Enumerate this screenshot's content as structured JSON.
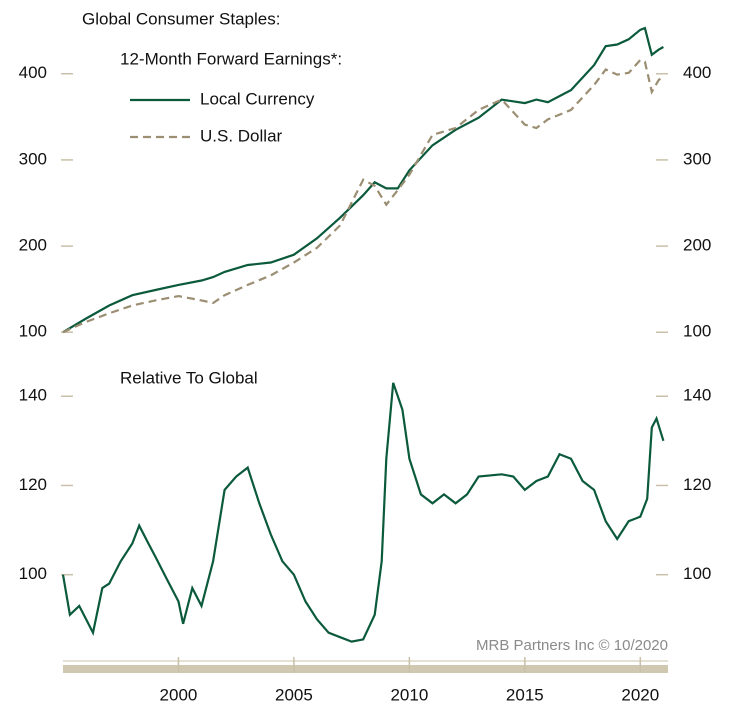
{
  "chart_data": [
    {
      "type": "line",
      "title": "Global Consumer Staples:",
      "subtitle": "12-Month Forward Earnings*:",
      "xlim": [
        1995,
        2021.2
      ],
      "ylim": [
        91,
        474
      ],
      "yticks": [
        100,
        200,
        300,
        400
      ],
      "x": [
        1995,
        1996,
        1997,
        1998,
        1999,
        2000,
        2001,
        2001.5,
        2002,
        2003,
        2004,
        2005,
        2006,
        2007,
        2008,
        2008.5,
        2009,
        2009.5,
        2010,
        2011,
        2012,
        2013,
        2014,
        2015,
        2015.5,
        2016,
        2017,
        2018,
        2018.5,
        2019,
        2019.5,
        2020,
        2020.2,
        2020.5,
        2020.8,
        2021
      ],
      "series": [
        {
          "name": "Local Currency",
          "color": "#0b5a3c",
          "dash": false,
          "values": [
            100,
            116,
            131,
            143,
            149,
            155,
            160,
            164,
            170,
            178,
            181,
            190,
            209,
            233,
            259,
            274,
            267,
            267,
            288,
            317,
            335,
            349,
            370,
            366,
            370,
            367,
            381,
            410,
            432,
            434,
            440,
            451,
            453,
            422,
            428,
            431
          ]
        },
        {
          "name": "U.S. Dollar",
          "color": "#9b8e72",
          "dash": true,
          "values": [
            100,
            112,
            122,
            131,
            137,
            142,
            137,
            134,
            143,
            155,
            166,
            181,
            198,
            224,
            277,
            270,
            248,
            265,
            283,
            329,
            337,
            358,
            370,
            341,
            337,
            347,
            358,
            387,
            405,
            399,
            401,
            416,
            414,
            379,
            393,
            396
          ]
        }
      ]
    },
    {
      "type": "line",
      "title": "Relative To Global",
      "annotation": "MRB Partners Inc © 10/2020",
      "xlim": [
        1995,
        2021.2
      ],
      "xticks": [
        2000,
        2005,
        2010,
        2015,
        2020
      ],
      "ylim": [
        82,
        147
      ],
      "yticks": [
        100,
        120,
        140
      ],
      "x": [
        1995,
        1995.3,
        1995.7,
        1996,
        1996.3,
        1996.7,
        1997,
        1997.5,
        1998,
        1998.3,
        1998.7,
        1999,
        1999.5,
        2000,
        2000.2,
        2000.6,
        2001,
        2001.5,
        2002,
        2002.5,
        2003,
        2003.5,
        2004,
        2004.5,
        2005,
        2005.5,
        2006,
        2006.5,
        2007,
        2007.5,
        2008,
        2008.5,
        2008.8,
        2009,
        2009.3,
        2009.7,
        2010,
        2010.5,
        2011,
        2011.5,
        2012,
        2012.5,
        2013,
        2014,
        2014.5,
        2015,
        2015.5,
        2016,
        2016.5,
        2017,
        2017.5,
        2018,
        2018.5,
        2019,
        2019.5,
        2020,
        2020.3,
        2020.5,
        2020.7,
        2021
      ],
      "series": [
        {
          "name": "Relative",
          "color": "#0b5a3c",
          "dash": false,
          "values": [
            100,
            91,
            93,
            90,
            87,
            97,
            98,
            103,
            107,
            111,
            107,
            104,
            99,
            94,
            89,
            97,
            93,
            103,
            119,
            122,
            124,
            116,
            109,
            103,
            100,
            94,
            90,
            87,
            86,
            85,
            85.5,
            91,
            103,
            126,
            143,
            137,
            126,
            118,
            116,
            118,
            116,
            118,
            122,
            122.5,
            122,
            119,
            121,
            122,
            127,
            126,
            121,
            119,
            112,
            108,
            112,
            113,
            117,
            133,
            135,
            130
          ]
        }
      ]
    }
  ]
}
